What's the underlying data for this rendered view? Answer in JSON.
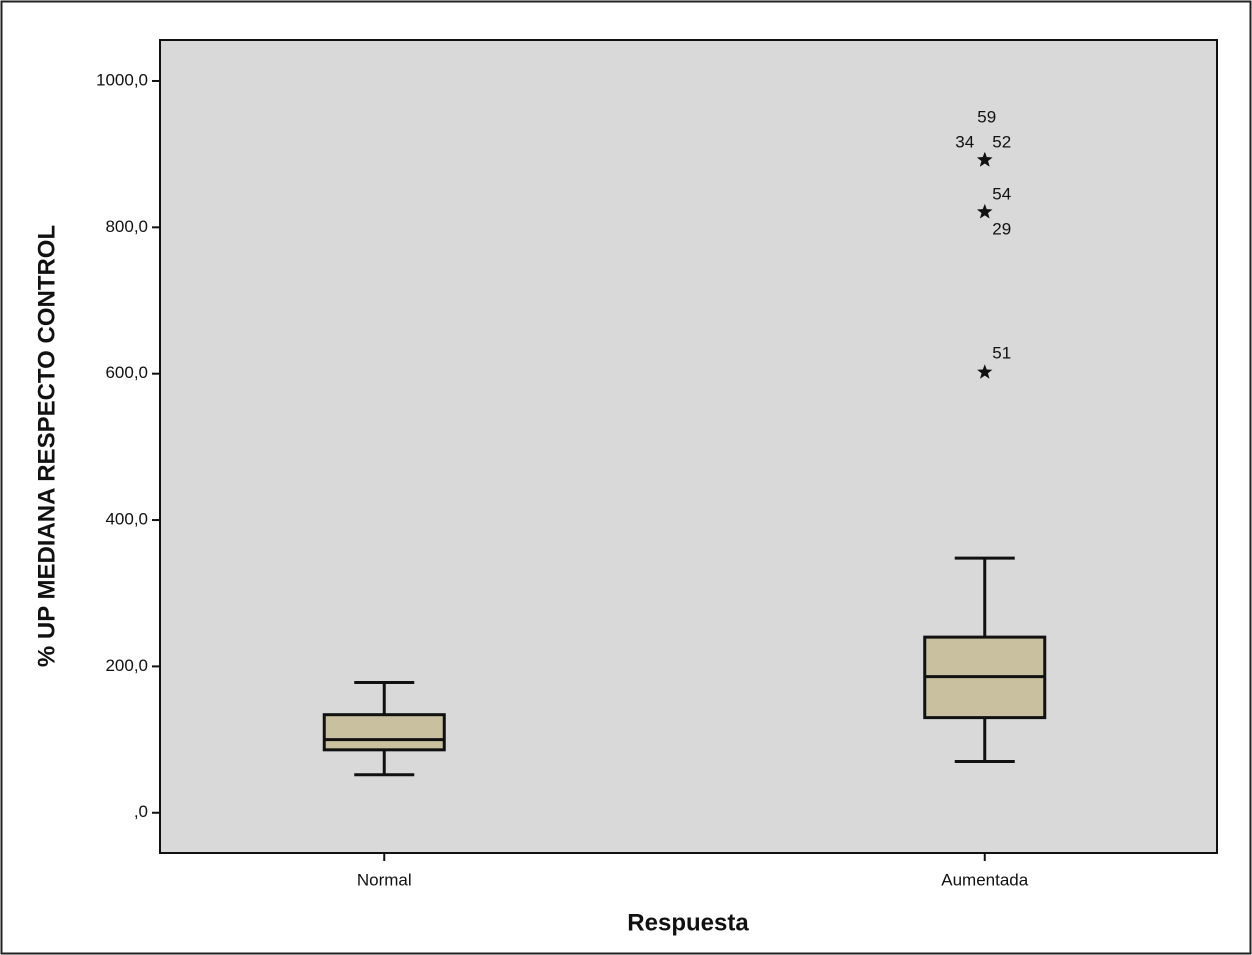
{
  "chart_data": {
    "type": "box",
    "x_label": "Respuesta",
    "y_label": "% UP MEDIANA RESPECTO CONTROL",
    "categories": [
      "Normal",
      "Aumentada"
    ],
    "boxes": [
      {
        "whislo": 52,
        "q1": 86,
        "med": 100,
        "q3": 134,
        "whishi": 178,
        "outliers": []
      },
      {
        "whislo": 70,
        "q1": 130,
        "med": 186,
        "q3": 240,
        "whishi": 348,
        "outliers": [
          {
            "value": 892,
            "label": "59"
          },
          {
            "value": 892,
            "label": "34"
          },
          {
            "value": 892,
            "label": "52"
          },
          {
            "value": 821,
            "label": "54"
          },
          {
            "value": 821,
            "label": "29"
          },
          {
            "value": 602,
            "label": "51"
          }
        ]
      }
    ],
    "color": "#c8c09f",
    "background": "#d9d9d9",
    "ylim": [
      -55,
      1056
    ],
    "yticks": [
      {
        "value": 0,
        "label": ",0"
      },
      {
        "value": 200,
        "label": "200,0"
      },
      {
        "value": 400,
        "label": "400,0"
      },
      {
        "value": 600,
        "label": "600,0"
      },
      {
        "value": 800,
        "label": "800,0"
      },
      {
        "value": 1000,
        "label": "1000,0"
      }
    ]
  }
}
